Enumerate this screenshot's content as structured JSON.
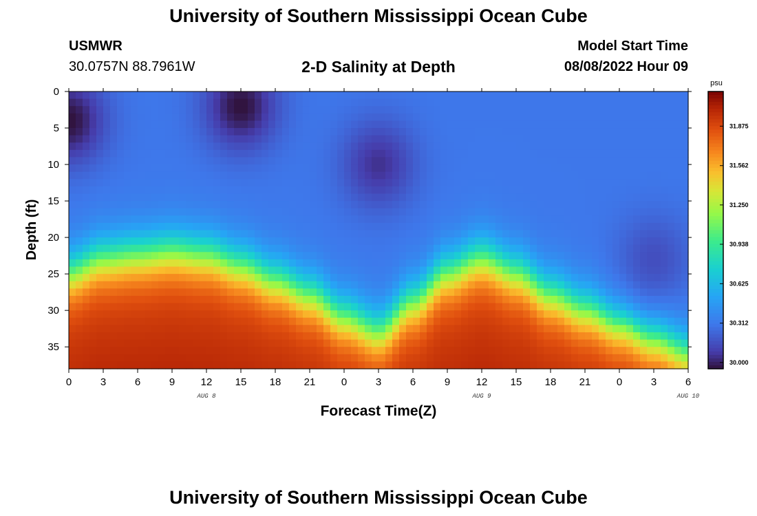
{
  "header": {
    "title": "University of Southern Mississippi Ocean Cube",
    "station": "USMWR",
    "coords": "30.0757N  88.7961W",
    "model_label": "Model Start Time",
    "model_time": "08/08/2022 Hour 09",
    "bottom_title": "University of Southern Mississippi Ocean Cube"
  },
  "chart_data": {
    "type": "heatmap",
    "title": "2-D Salinity at Depth",
    "xlabel": "Forecast Time(Z)",
    "ylabel": "Depth (ft)",
    "x_ticks": [
      "0",
      "3",
      "6",
      "9",
      "12",
      "15",
      "18",
      "21",
      "0",
      "3",
      "6",
      "9",
      "12",
      "15",
      "18",
      "21",
      "0",
      "3",
      "6"
    ],
    "date_labels": [
      {
        "label": "AUG 8",
        "at_hour": 12
      },
      {
        "label": "AUG 9",
        "at_hour": 36
      },
      {
        "label": "AUG 10",
        "at_hour": 54
      }
    ],
    "y_ticks": [
      "0",
      "5",
      "10",
      "15",
      "20",
      "25",
      "30",
      "35"
    ],
    "xlim_hours": [
      0,
      54
    ],
    "ylim_ft": [
      0,
      38
    ],
    "y_inverted": true,
    "colorbar": {
      "unit": "psu",
      "min": 29.95,
      "max": 32.15,
      "tick_labels": [
        "31.875",
        "31.562",
        "31.250",
        "30.938",
        "30.625",
        "30.312",
        "30.000"
      ],
      "tick_values": [
        31.875,
        31.562,
        31.25,
        30.938,
        30.625,
        30.312,
        30.0
      ]
    },
    "surface_salinity_psu": 30.3,
    "bottom_salinity_psu": 31.9,
    "halocline_depth_ft": [
      [
        0,
        25
      ],
      [
        3,
        23
      ],
      [
        6,
        22.5
      ],
      [
        9,
        22
      ],
      [
        12,
        22.5
      ],
      [
        15,
        24
      ],
      [
        18,
        26
      ],
      [
        21,
        28
      ],
      [
        24,
        31
      ],
      [
        27,
        33
      ],
      [
        30,
        29
      ],
      [
        33,
        25
      ],
      [
        36,
        23
      ],
      [
        39,
        25
      ],
      [
        42,
        28
      ],
      [
        45,
        30
      ],
      [
        48,
        32
      ],
      [
        51,
        34
      ],
      [
        54,
        36
      ]
    ],
    "halocline_width_ft": 4.5,
    "low_salinity_pockets": [
      {
        "hour": 0,
        "depth_ft": 4,
        "salinity_psu": 29.95
      },
      {
        "hour": 15,
        "depth_ft": 2,
        "salinity_psu": 29.95
      },
      {
        "hour": 27,
        "depth_ft": 10,
        "salinity_psu": 30.05
      },
      {
        "hour": 51,
        "depth_ft": 23,
        "salinity_psu": 30.15
      }
    ]
  }
}
